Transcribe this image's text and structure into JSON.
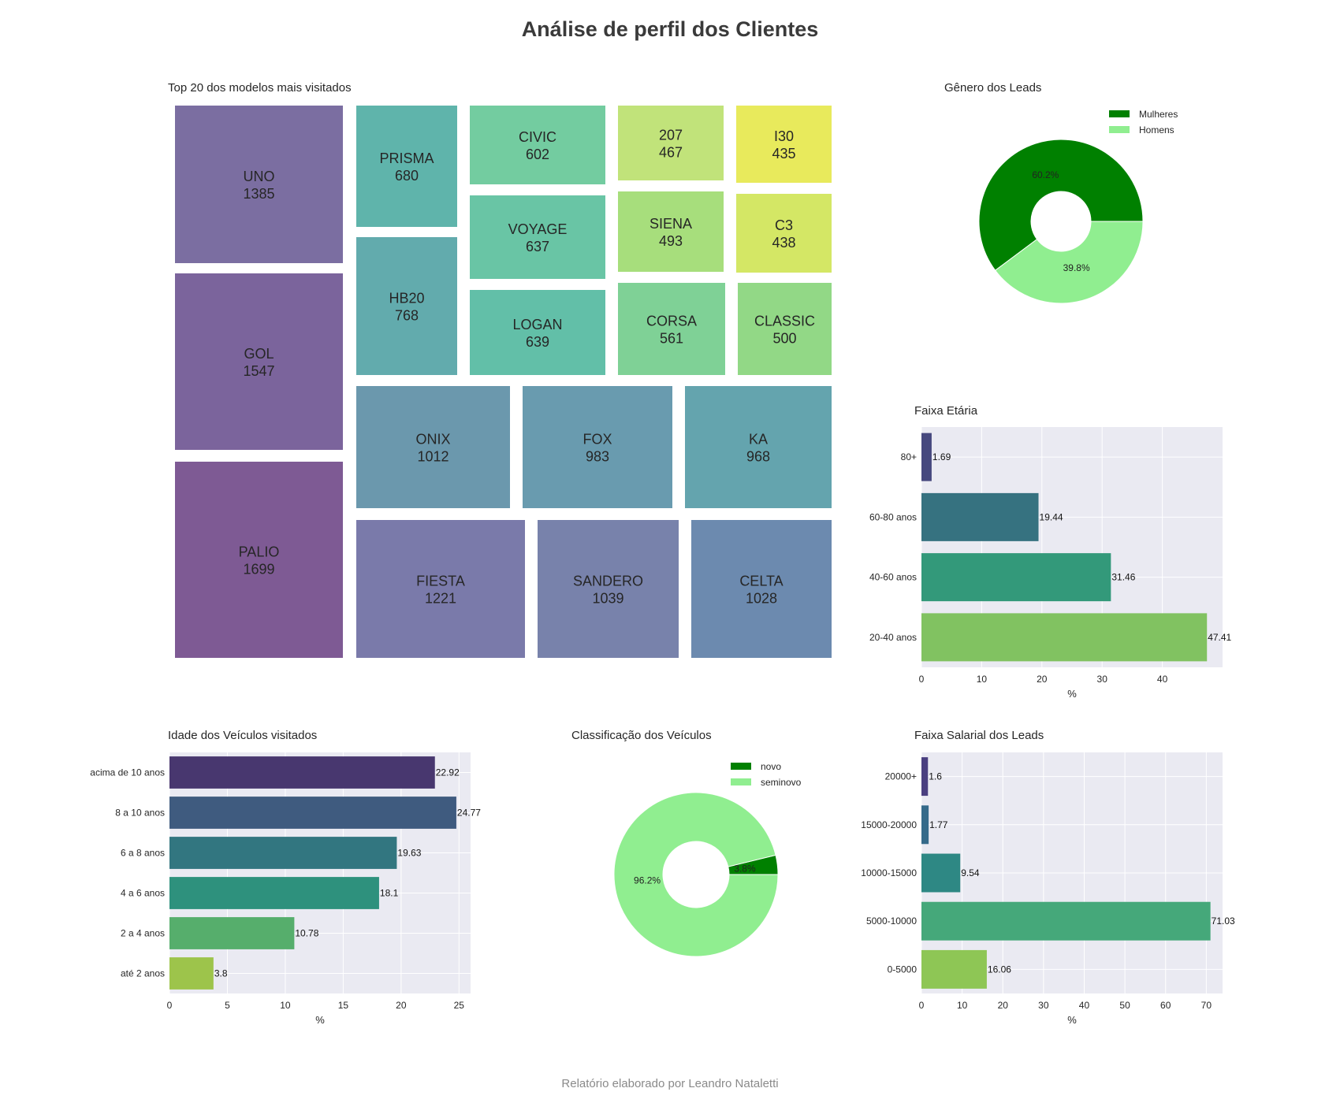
{
  "page": {
    "title": "Análise de perfil dos Clientes",
    "footer": "Relatório elaborado por Leandro Nataletti"
  },
  "chart_data": [
    {
      "type": "treemap",
      "title": "Top 20 dos modelos mais visitados",
      "items": [
        {
          "label": "UNO",
          "value": 1385,
          "color": "#7b6ea1"
        },
        {
          "label": "GOL",
          "value": 1547,
          "color": "#7b649c"
        },
        {
          "label": "PALIO",
          "value": 1699,
          "color": "#7e5a94"
        },
        {
          "label": "PRISMA",
          "value": 680,
          "color": "#5fb4ab"
        },
        {
          "label": "HB20",
          "value": 768,
          "color": "#62abad"
        },
        {
          "label": "CIVIC",
          "value": 602,
          "color": "#73cca0"
        },
        {
          "label": "VOYAGE",
          "value": 637,
          "color": "#69c5a5"
        },
        {
          "label": "LOGAN",
          "value": 639,
          "color": "#62bfa8"
        },
        {
          "label": "207",
          "value": 467,
          "color": "#c1e37a"
        },
        {
          "label": "SIENA",
          "value": 493,
          "color": "#a7de7c"
        },
        {
          "label": "CORSA",
          "value": 561,
          "color": "#7fd196"
        },
        {
          "label": "I30",
          "value": 435,
          "color": "#e8ea5c"
        },
        {
          "label": "C3",
          "value": 438,
          "color": "#d4e765"
        },
        {
          "label": "CLASSIC",
          "value": 500,
          "color": "#92d886"
        },
        {
          "label": "ONIX",
          "value": 1012,
          "color": "#6b98ad"
        },
        {
          "label": "FOX",
          "value": 983,
          "color": "#699baf"
        },
        {
          "label": "KA",
          "value": 968,
          "color": "#64a4ae"
        },
        {
          "label": "FIESTA",
          "value": 1221,
          "color": "#7a7aaa"
        },
        {
          "label": "SANDERO",
          "value": 1039,
          "color": "#7882ab"
        },
        {
          "label": "CELTA",
          "value": 1028,
          "color": "#6c8aaf"
        }
      ]
    },
    {
      "type": "pie",
      "title": "Gênero dos Leads",
      "labels": [
        "Mulheres",
        "Homens"
      ],
      "values": [
        60.2,
        39.8
      ],
      "pct_labels": [
        "60.2%",
        "39.8%"
      ],
      "colors": [
        "#008000",
        "#90ee90"
      ],
      "legend": "top-right"
    },
    {
      "type": "bar",
      "orientation": "horizontal",
      "title": "Faixa Etária",
      "categories": [
        "80+",
        "60-80 anos",
        "40-60 anos",
        "20-40 anos"
      ],
      "values": [
        1.69,
        19.44,
        31.46,
        47.41
      ],
      "value_labels": [
        "1.69",
        "19.44",
        "31.46",
        "47.41"
      ],
      "colors": [
        "#46487e",
        "#367280",
        "#33997a",
        "#81c261"
      ],
      "xlabel": "%",
      "xlim": [
        0,
        50
      ],
      "xticks": [
        0,
        10,
        20,
        30,
        40
      ],
      "grid": true
    },
    {
      "type": "bar",
      "orientation": "horizontal",
      "title": "Idade dos Veículos visitados",
      "categories": [
        "acima de 10 anos",
        "8 a 10 anos",
        "6 a 8 anos",
        "4 a 6 anos",
        "2 a 4 anos",
        "até 2 anos"
      ],
      "values": [
        22.92,
        24.77,
        19.63,
        18.1,
        10.78,
        3.8
      ],
      "value_labels": [
        "22.92",
        "24.77",
        "19.63",
        "18.1",
        "10.78",
        "3.8"
      ],
      "colors": [
        "#48376f",
        "#3f5b7f",
        "#327680",
        "#2e917d",
        "#56ae6c",
        "#9dc44b"
      ],
      "xlabel": "%",
      "xlim": [
        0,
        26
      ],
      "xticks": [
        0,
        5,
        10,
        15,
        20,
        25
      ],
      "grid": true
    },
    {
      "type": "pie",
      "title": "Classificação dos Veículos",
      "labels": [
        "novo",
        "seminovo"
      ],
      "values": [
        3.8,
        96.2
      ],
      "pct_labels": [
        "3.8%",
        "96.2%"
      ],
      "colors": [
        "#008000",
        "#90ee90"
      ],
      "legend": "top-right"
    },
    {
      "type": "bar",
      "orientation": "horizontal",
      "title": "Faixa Salarial dos Leads",
      "categories": [
        "20000+",
        "15000-20000",
        "10000-15000",
        "5000-10000",
        "0-5000"
      ],
      "values": [
        1.6,
        1.77,
        9.54,
        71.03,
        16.06
      ],
      "value_labels": [
        "1.6",
        "1.77",
        "9.54",
        "71.03",
        "16.06"
      ],
      "colors": [
        "#4a3f80",
        "#356a8a",
        "#2e8884",
        "#45a87a",
        "#8ec655"
      ],
      "xlabel": "%",
      "xlim": [
        0,
        74
      ],
      "xticks": [
        0,
        10,
        20,
        30,
        40,
        50,
        60,
        70
      ],
      "grid": true
    }
  ]
}
